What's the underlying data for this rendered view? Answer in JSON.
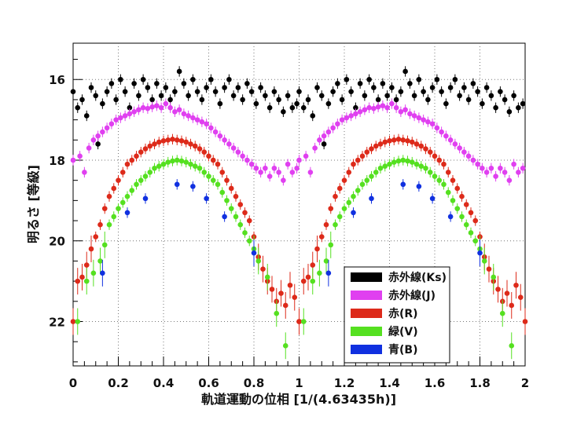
{
  "chart_data": {
    "type": "scatter",
    "xlabel": "軌道運動の位相 [1/(4.63435h)]",
    "ylabel": "明るさ [等級]",
    "xlim": [
      0,
      2
    ],
    "ylim": [
      23.1,
      15.1
    ],
    "y_inverted": true,
    "grid": true,
    "legend_position": "bottom-right",
    "x_ticks": [
      "0",
      "0.2",
      "0.4",
      "0.6",
      "0.8",
      "1",
      "1.2",
      "1.4",
      "1.6",
      "1.8",
      "2"
    ],
    "y_ticks": [
      "16",
      "18",
      "20",
      "22"
    ],
    "series": [
      {
        "name": "赤外線(Ks)",
        "color": "#000000",
        "points": [
          [
            0.0,
            16.3
          ],
          [
            0.02,
            16.7
          ],
          [
            0.04,
            16.5
          ],
          [
            0.06,
            16.9
          ],
          [
            0.08,
            16.2
          ],
          [
            0.1,
            16.4
          ],
          [
            0.11,
            17.6
          ],
          [
            0.13,
            16.6
          ],
          [
            0.15,
            16.3
          ],
          [
            0.17,
            16.1
          ],
          [
            0.19,
            16.5
          ],
          [
            0.21,
            16.0
          ],
          [
            0.23,
            16.3
          ],
          [
            0.25,
            16.7
          ],
          [
            0.27,
            16.1
          ],
          [
            0.29,
            16.4
          ],
          [
            0.31,
            16.0
          ],
          [
            0.33,
            16.2
          ],
          [
            0.35,
            16.5
          ],
          [
            0.37,
            16.1
          ],
          [
            0.39,
            16.4
          ],
          [
            0.41,
            16.2
          ],
          [
            0.43,
            16.5
          ],
          [
            0.45,
            16.3
          ],
          [
            0.47,
            15.8
          ],
          [
            0.49,
            16.1
          ],
          [
            0.51,
            16.4
          ],
          [
            0.53,
            16.0
          ],
          [
            0.55,
            16.3
          ],
          [
            0.57,
            16.5
          ],
          [
            0.59,
            16.2
          ],
          [
            0.61,
            16.0
          ],
          [
            0.63,
            16.3
          ],
          [
            0.65,
            16.6
          ],
          [
            0.67,
            16.2
          ],
          [
            0.69,
            16.0
          ],
          [
            0.71,
            16.4
          ],
          [
            0.73,
            16.2
          ],
          [
            0.75,
            16.5
          ],
          [
            0.77,
            16.1
          ],
          [
            0.79,
            16.3
          ],
          [
            0.81,
            16.6
          ],
          [
            0.83,
            16.2
          ],
          [
            0.85,
            16.4
          ],
          [
            0.87,
            16.7
          ],
          [
            0.89,
            16.3
          ],
          [
            0.91,
            16.5
          ],
          [
            0.93,
            16.8
          ],
          [
            0.95,
            16.4
          ],
          [
            0.97,
            16.7
          ],
          [
            0.99,
            16.6
          ]
        ]
      },
      {
        "name": "赤外線(J)",
        "color": "#e040f0",
        "points": [
          [
            0.0,
            18.0
          ],
          [
            0.03,
            17.9
          ],
          [
            0.05,
            18.3
          ],
          [
            0.07,
            17.7
          ],
          [
            0.09,
            17.5
          ],
          [
            0.11,
            17.4
          ],
          [
            0.13,
            17.3
          ],
          [
            0.15,
            17.2
          ],
          [
            0.17,
            17.1
          ],
          [
            0.19,
            17.0
          ],
          [
            0.21,
            16.95
          ],
          [
            0.23,
            16.9
          ],
          [
            0.25,
            16.85
          ],
          [
            0.27,
            16.8
          ],
          [
            0.29,
            16.75
          ],
          [
            0.31,
            16.7
          ],
          [
            0.33,
            16.72
          ],
          [
            0.35,
            16.68
          ],
          [
            0.37,
            16.65
          ],
          [
            0.39,
            16.7
          ],
          [
            0.41,
            16.6
          ],
          [
            0.43,
            16.7
          ],
          [
            0.45,
            16.8
          ],
          [
            0.47,
            16.75
          ],
          [
            0.49,
            16.85
          ],
          [
            0.51,
            16.9
          ],
          [
            0.53,
            16.95
          ],
          [
            0.55,
            17.0
          ],
          [
            0.57,
            17.05
          ],
          [
            0.59,
            17.1
          ],
          [
            0.61,
            17.2
          ],
          [
            0.63,
            17.3
          ],
          [
            0.65,
            17.4
          ],
          [
            0.67,
            17.5
          ],
          [
            0.69,
            17.6
          ],
          [
            0.71,
            17.7
          ],
          [
            0.73,
            17.8
          ],
          [
            0.75,
            17.9
          ],
          [
            0.77,
            18.0
          ],
          [
            0.79,
            18.1
          ],
          [
            0.81,
            18.2
          ],
          [
            0.83,
            18.3
          ],
          [
            0.85,
            18.2
          ],
          [
            0.87,
            18.4
          ],
          [
            0.89,
            18.2
          ],
          [
            0.91,
            18.3
          ],
          [
            0.93,
            18.5
          ],
          [
            0.95,
            18.1
          ],
          [
            0.97,
            18.3
          ],
          [
            0.99,
            18.2
          ]
        ]
      },
      {
        "name": "赤(R)",
        "color": "#dd2a1a",
        "points": [
          [
            0.0,
            22.0
          ],
          [
            0.02,
            21.0
          ],
          [
            0.04,
            20.9
          ],
          [
            0.06,
            20.6
          ],
          [
            0.08,
            20.2
          ],
          [
            0.1,
            19.9
          ],
          [
            0.12,
            19.6
          ],
          [
            0.14,
            19.2
          ],
          [
            0.16,
            18.9
          ],
          [
            0.18,
            18.7
          ],
          [
            0.2,
            18.5
          ],
          [
            0.22,
            18.3
          ],
          [
            0.24,
            18.1
          ],
          [
            0.26,
            18.0
          ],
          [
            0.28,
            17.9
          ],
          [
            0.3,
            17.8
          ],
          [
            0.32,
            17.72
          ],
          [
            0.34,
            17.65
          ],
          [
            0.36,
            17.6
          ],
          [
            0.38,
            17.55
          ],
          [
            0.4,
            17.52
          ],
          [
            0.42,
            17.5
          ],
          [
            0.44,
            17.48
          ],
          [
            0.46,
            17.5
          ],
          [
            0.48,
            17.52
          ],
          [
            0.5,
            17.55
          ],
          [
            0.52,
            17.6
          ],
          [
            0.54,
            17.65
          ],
          [
            0.56,
            17.72
          ],
          [
            0.58,
            17.8
          ],
          [
            0.6,
            17.9
          ],
          [
            0.62,
            18.0
          ],
          [
            0.64,
            18.1
          ],
          [
            0.66,
            18.3
          ],
          [
            0.68,
            18.5
          ],
          [
            0.7,
            18.7
          ],
          [
            0.72,
            18.9
          ],
          [
            0.74,
            19.1
          ],
          [
            0.76,
            19.3
          ],
          [
            0.78,
            19.5
          ],
          [
            0.8,
            19.9
          ],
          [
            0.82,
            20.4
          ],
          [
            0.84,
            20.7
          ],
          [
            0.86,
            21.0
          ],
          [
            0.88,
            21.2
          ],
          [
            0.9,
            21.5
          ],
          [
            0.92,
            21.3
          ],
          [
            0.94,
            21.6
          ],
          [
            0.96,
            21.1
          ],
          [
            0.98,
            21.4
          ],
          [
            1.0,
            22.0
          ]
        ]
      },
      {
        "name": "緑(V)",
        "color": "#55e020",
        "points": [
          [
            0.02,
            22.0
          ],
          [
            0.06,
            21.0
          ],
          [
            0.09,
            20.8
          ],
          [
            0.12,
            20.5
          ],
          [
            0.14,
            20.1
          ],
          [
            0.16,
            19.6
          ],
          [
            0.18,
            19.4
          ],
          [
            0.2,
            19.2
          ],
          [
            0.22,
            19.05
          ],
          [
            0.24,
            18.9
          ],
          [
            0.26,
            18.75
          ],
          [
            0.28,
            18.6
          ],
          [
            0.3,
            18.5
          ],
          [
            0.32,
            18.4
          ],
          [
            0.34,
            18.3
          ],
          [
            0.36,
            18.2
          ],
          [
            0.38,
            18.15
          ],
          [
            0.4,
            18.1
          ],
          [
            0.42,
            18.05
          ],
          [
            0.44,
            18.02
          ],
          [
            0.46,
            18.0
          ],
          [
            0.48,
            18.02
          ],
          [
            0.5,
            18.05
          ],
          [
            0.52,
            18.1
          ],
          [
            0.54,
            18.15
          ],
          [
            0.56,
            18.2
          ],
          [
            0.58,
            18.3
          ],
          [
            0.6,
            18.4
          ],
          [
            0.62,
            18.5
          ],
          [
            0.64,
            18.6
          ],
          [
            0.66,
            18.8
          ],
          [
            0.68,
            19.0
          ],
          [
            0.7,
            19.2
          ],
          [
            0.72,
            19.4
          ],
          [
            0.74,
            19.6
          ],
          [
            0.76,
            19.8
          ],
          [
            0.78,
            20.0
          ],
          [
            0.8,
            20.2
          ],
          [
            0.82,
            20.5
          ],
          [
            0.86,
            20.9
          ],
          [
            0.9,
            21.8
          ],
          [
            0.94,
            22.6
          ]
        ]
      },
      {
        "name": "青(B)",
        "color": "#1030e0",
        "points": [
          [
            0.13,
            20.8
          ],
          [
            0.24,
            19.3
          ],
          [
            0.32,
            18.95
          ],
          [
            0.46,
            18.6
          ],
          [
            0.53,
            18.65
          ],
          [
            0.59,
            18.95
          ],
          [
            0.67,
            19.4
          ],
          [
            0.8,
            20.3
          ]
        ]
      }
    ]
  }
}
